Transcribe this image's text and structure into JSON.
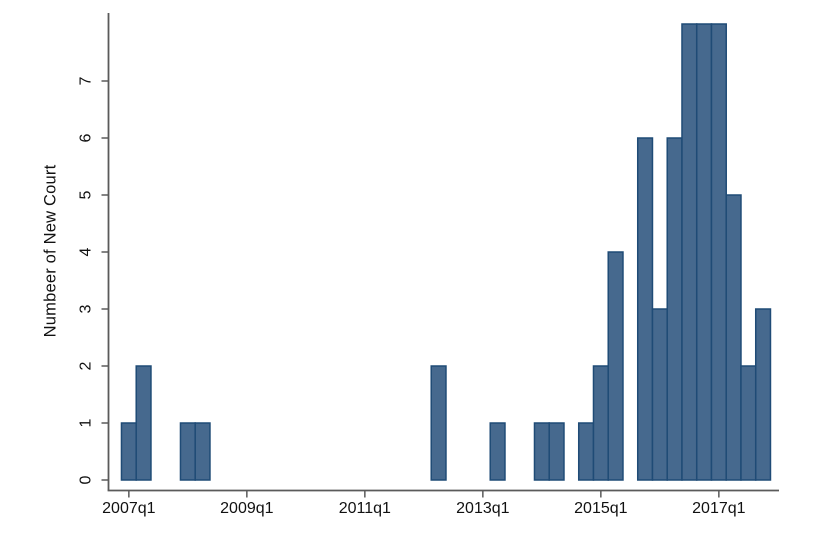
{
  "page": {
    "background": "#ffffff"
  },
  "chart_data": {
    "type": "bar",
    "title": "",
    "xlabel": "",
    "ylabel": "Numbeer of New Court",
    "categories": [
      "2007q1",
      "2007q2",
      "2007q3",
      "2007q4",
      "2008q1",
      "2008q2",
      "2008q3",
      "2008q4",
      "2009q1",
      "2009q2",
      "2009q3",
      "2009q4",
      "2010q1",
      "2010q2",
      "2010q3",
      "2010q4",
      "2011q1",
      "2011q2",
      "2011q3",
      "2011q4",
      "2012q1",
      "2012q2",
      "2012q3",
      "2012q4",
      "2013q1",
      "2013q2",
      "2013q3",
      "2013q4",
      "2014q1",
      "2014q2",
      "2014q3",
      "2014q4",
      "2015q1",
      "2015q2",
      "2015q3",
      "2015q4",
      "2016q1",
      "2016q2",
      "2016q3",
      "2016q4",
      "2017q1",
      "2017q2",
      "2017q3",
      "2017q4"
    ],
    "values": [
      1,
      2,
      0,
      0,
      1,
      1,
      0,
      0,
      0,
      0,
      0,
      0,
      0,
      0,
      0,
      0,
      0,
      0,
      0,
      0,
      0,
      2,
      0,
      0,
      0,
      1,
      0,
      0,
      1,
      1,
      0,
      1,
      2,
      4,
      0,
      6,
      3,
      6,
      8,
      8,
      8,
      5,
      2,
      3
    ],
    "x_tick_labels": [
      "2007q1",
      "2009q1",
      "2011q1",
      "2013q1",
      "2015q1",
      "2017q1"
    ],
    "y_tick_labels": [
      "0",
      "1",
      "2",
      "3",
      "4",
      "5",
      "6",
      "7"
    ],
    "ylim": [
      0,
      8
    ],
    "grid": false,
    "legend": "none",
    "colors": {
      "bar_fill": "#46698E",
      "bar_border": "#1F4B76",
      "axis": "#5A5A5A",
      "text": "#111111"
    }
  }
}
